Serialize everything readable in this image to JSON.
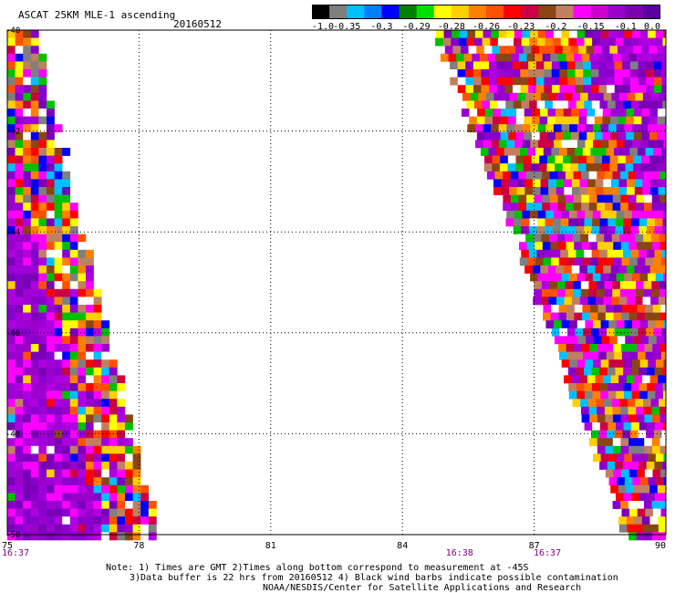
{
  "header": {
    "title": "ASCAT 25KM MLE-1 ascending",
    "date": "20160512"
  },
  "colorbar": {
    "labels": [
      "-1.0",
      "-0.35",
      "-0.3",
      "-0.29",
      "-0.28",
      "-0.26",
      "-0.23",
      "-0.2",
      "-0.15",
      "-0.1",
      "0.0"
    ],
    "colors": [
      "#000000",
      "#7f7f7f",
      "#00bfff",
      "#0080ff",
      "#0000ff",
      "#008000",
      "#00e000",
      "#ffff00",
      "#ffd000",
      "#ff8000",
      "#ff5000",
      "#ff0000",
      "#cc0044",
      "#8b4513",
      "#c08060",
      "#ff00ff",
      "#cc00cc",
      "#9900cc",
      "#7a00b0",
      "#5a00a0"
    ]
  },
  "map": {
    "lon_range": [
      75,
      90
    ],
    "lat_range": [
      -50,
      -40
    ],
    "y_ticks": [
      "-40",
      "-42",
      "-44",
      "-46",
      "-48",
      "-50"
    ],
    "x_ticks": [
      "75",
      "78",
      "81",
      "84",
      "87",
      "90"
    ],
    "times": [
      "16:37",
      "16:38",
      "16:37"
    ],
    "time_lons": [
      75,
      85.3,
      87.3
    ]
  },
  "notes": {
    "line1": "Note: 1) Times are GMT 2)Times along bottom correspond to measurement at -45S",
    "line2": "3)Data buffer is 22 hrs from 20160512 4) Black wind barbs indicate possible contamination",
    "line3": "NOAA/NESDIS/Center for Satellite Applications and Research"
  },
  "palette": {
    "purple": [
      "#9a00cc",
      "#8800cc",
      "#a000d8",
      "#7a00b8",
      "#b000e0"
    ],
    "magenta": "#ff00ff",
    "mixed": [
      "#ff0000",
      "#ffff00",
      "#ff8000",
      "#8b4513",
      "#00c000",
      "#0000ff",
      "#00bfff",
      "#ffd000",
      "#ff5000",
      "#cc0044",
      "#c08060",
      "#ff00ff",
      "#7f7f7f",
      "#ffffff"
    ]
  }
}
